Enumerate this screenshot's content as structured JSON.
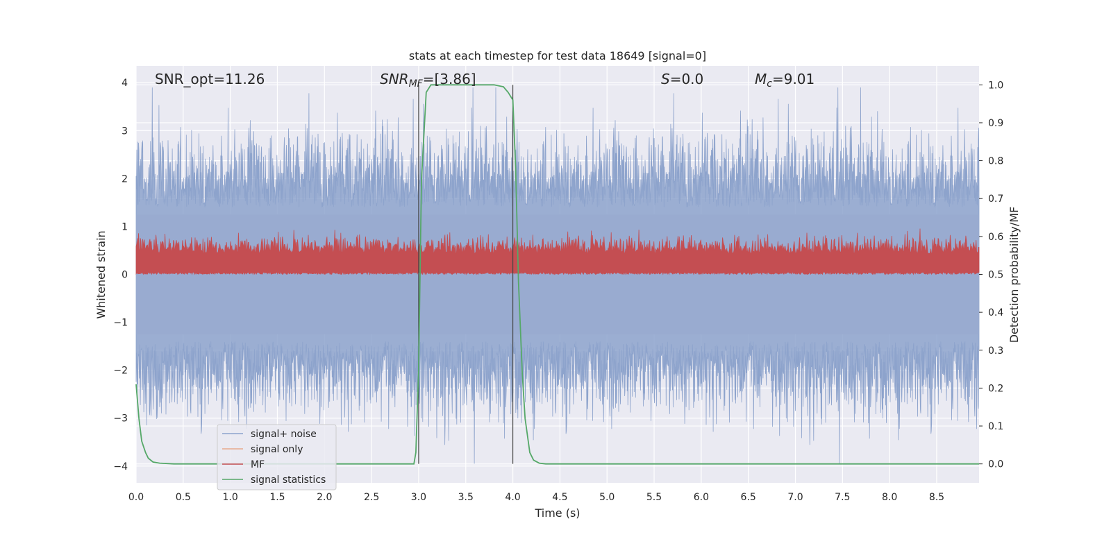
{
  "chart_data": {
    "type": "line",
    "title": "stats at each timestep for test data 18649 [signal=0]",
    "xlabel": "Time (s)",
    "ylabel_left": "Whitened strain",
    "ylabel_right": "Detection probability/MF",
    "xlim": [
      0.0,
      8.95
    ],
    "ylim_left": [
      -4.35,
      4.35
    ],
    "ylim_right": [
      -0.05,
      1.05
    ],
    "xticks": [
      "0.0",
      "0.5",
      "1.0",
      "1.5",
      "2.0",
      "2.5",
      "3.0",
      "3.5",
      "4.0",
      "4.5",
      "5.0",
      "5.5",
      "6.0",
      "6.5",
      "7.0",
      "7.5",
      "8.0",
      "8.5"
    ],
    "yticks_left": [
      "4",
      "3",
      "2",
      "1",
      "0",
      "−1",
      "−2",
      "−3",
      "−4"
    ],
    "yticks_right": [
      "1.0",
      "0.9",
      "0.8",
      "0.7",
      "0.6",
      "0.5",
      "0.4",
      "0.3",
      "0.2",
      "0.1",
      "0.0"
    ],
    "annotations": {
      "snr_opt": "SNR_opt=11.26",
      "snr_mf_base": "SNR",
      "snr_mf_sub": "MF",
      "snr_mf_value": "=[3.86]",
      "s_base": "S",
      "s_value": "=0.0",
      "mc_base": "M",
      "mc_sub": "c",
      "mc_value": "=9.01"
    },
    "markers_x": [
      3.0,
      4.0
    ],
    "legend_position": "lower-left",
    "series": [
      {
        "name": "signal+ noise",
        "color": "#8da3cc",
        "description": "whitened noise, amplitude about ±4 (left axis)"
      },
      {
        "name": "signal only",
        "color": "#e8a98d",
        "values": []
      },
      {
        "name": "MF",
        "color": "#c44e52",
        "axis": "right",
        "range": [
          0.5,
          0.62
        ]
      },
      {
        "name": "signal statistics",
        "color": "#55a868",
        "axis": "right",
        "x": [
          0.0,
          0.03,
          0.06,
          0.1,
          0.13,
          0.18,
          0.25,
          0.4,
          1.0,
          2.0,
          2.95,
          2.97,
          3.0,
          3.03,
          3.08,
          3.13,
          3.2,
          3.5,
          3.8,
          3.9,
          3.95,
          4.0,
          4.03,
          4.06,
          4.1,
          4.13,
          4.18,
          4.22,
          4.28,
          4.35,
          4.5,
          5.0,
          6.0,
          7.0,
          8.0,
          8.95
        ],
        "y": [
          0.21,
          0.12,
          0.06,
          0.03,
          0.015,
          0.005,
          0.002,
          0.0,
          0.0,
          0.0,
          0.0,
          0.03,
          0.25,
          0.75,
          0.98,
          1.0,
          1.0,
          1.0,
          1.0,
          0.995,
          0.98,
          0.96,
          0.78,
          0.48,
          0.24,
          0.12,
          0.03,
          0.01,
          0.002,
          0.0,
          0.0,
          0.0,
          0.0,
          0.0,
          0.0,
          0.0
        ]
      }
    ]
  }
}
